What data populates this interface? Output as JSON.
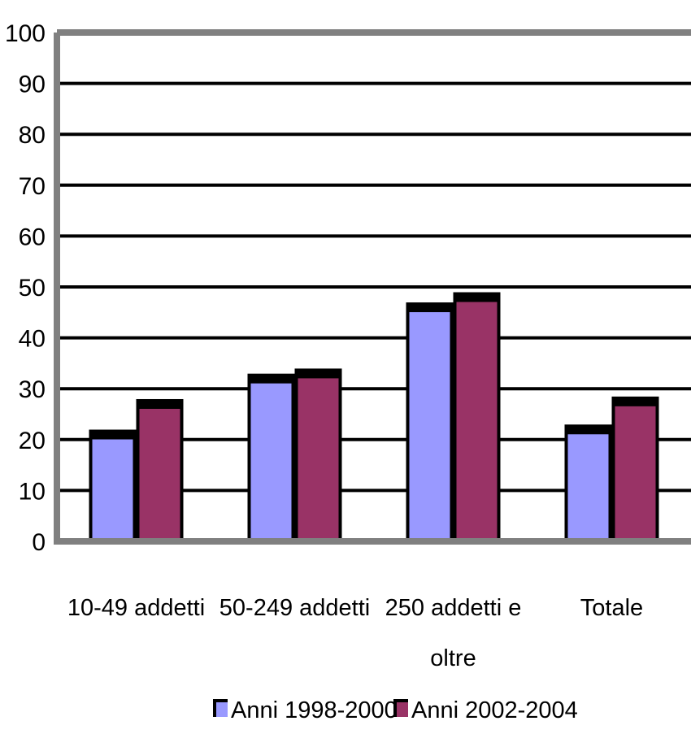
{
  "chart_data": {
    "type": "bar",
    "title": "",
    "xlabel": "",
    "ylabel": "",
    "ylim": [
      0,
      100
    ],
    "yticks": [
      "0",
      "10",
      "20",
      "30",
      "40",
      "50",
      "60",
      "70",
      "80",
      "90",
      "100"
    ],
    "grid": true,
    "legend_position": "bottom",
    "categories": [
      [
        "10-49 addetti"
      ],
      [
        "50-249 addetti"
      ],
      [
        "250 addetti e",
        "oltre"
      ],
      [
        "Totale"
      ]
    ],
    "series": [
      {
        "name": "Anni 1998-2000",
        "color": "#9999ff",
        "values": [
          21,
          32,
          46,
          22
        ]
      },
      {
        "name": "Anni 2002-2004",
        "color": "#993366",
        "values": [
          27,
          33,
          48,
          27.5
        ]
      }
    ]
  }
}
